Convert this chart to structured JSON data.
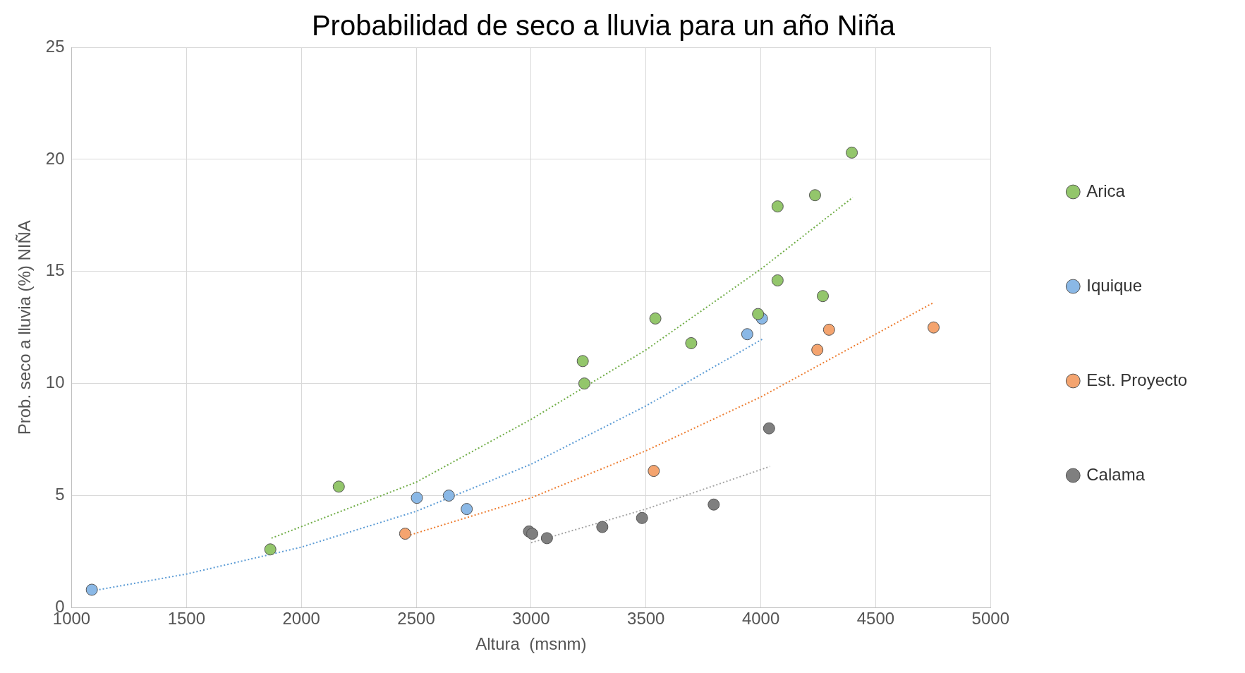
{
  "chart_data": {
    "type": "scatter",
    "title": "Probabilidad de seco a lluvia para un año Niña",
    "xlabel": "Altura  (msnm)",
    "ylabel": "Prob. seco a lluvia (%) NIÑA",
    "xlim": [
      1000,
      5000
    ],
    "xticks": [
      1000,
      1500,
      2000,
      2500,
      3000,
      3500,
      4000,
      4500,
      5000
    ],
    "ylim": [
      0,
      25
    ],
    "yticks": [
      0,
      5,
      10,
      15,
      20,
      25
    ],
    "grid": true,
    "legend": "right",
    "marker": "circle",
    "series": [
      {
        "name": "Arica",
        "color": "#93c66b",
        "x": [
          1865,
          2163,
          3225,
          3232,
          3541,
          3697,
          3988,
          4073,
          4073,
          4236,
          4270,
          4396
        ],
        "values": [
          2.6,
          5.4,
          11.0,
          10.0,
          12.9,
          11.8,
          13.1,
          17.9,
          14.6,
          18.4,
          13.9,
          20.3
        ]
      },
      {
        "name": "Iquique",
        "color": "#8ab8e6",
        "x": [
          1088,
          2503,
          2642,
          2720,
          3941,
          4005
        ],
        "values": [
          0.8,
          4.9,
          5.0,
          4.4,
          12.2,
          12.9
        ]
      },
      {
        "name": "Est. Proyecto",
        "color": "#f4a46f",
        "x": [
          2452,
          3534,
          4246,
          4297,
          4752
        ],
        "values": [
          3.3,
          6.1,
          11.5,
          12.4,
          12.5
        ]
      },
      {
        "name": "Calama",
        "color": "#7f7f7f",
        "x": [
          2991,
          3005,
          3069,
          3310,
          3483,
          3795,
          4036
        ],
        "values": [
          3.4,
          3.3,
          3.1,
          3.6,
          4.0,
          4.6,
          8.0
        ]
      },
      {
        "type": "line",
        "color": "#70ad47",
        "line_style": "dotted",
        "marker": "none",
        "x": [
          1870,
          2500,
          3000,
          3500,
          4000,
          4400
        ],
        "values": [
          3.1,
          5.6,
          8.4,
          11.5,
          15.1,
          18.3
        ]
      },
      {
        "type": "line",
        "color": "#5b9bd5",
        "line_style": "dotted",
        "marker": "none",
        "x": [
          1090,
          1500,
          2000,
          2500,
          3000,
          3500,
          4010
        ],
        "values": [
          0.75,
          1.5,
          2.7,
          4.3,
          6.4,
          9.0,
          12.0
        ]
      },
      {
        "type": "line",
        "color": "#ed7d31",
        "line_style": "dotted",
        "marker": "none",
        "x": [
          2460,
          3000,
          3500,
          4000,
          4500,
          4750
        ],
        "values": [
          3.2,
          4.9,
          7.0,
          9.4,
          12.2,
          13.6
        ]
      },
      {
        "type": "line",
        "color": "#a5a5a5",
        "line_style": "dotted",
        "marker": "none",
        "x": [
          3000,
          3500,
          4040
        ],
        "values": [
          2.9,
          4.4,
          6.3
        ]
      }
    ]
  }
}
